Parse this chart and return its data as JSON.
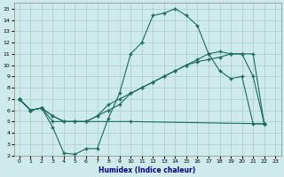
{
  "bg_color": "#ceeaea",
  "grid_color": "#aacccc",
  "line_color": "#1a6b5a",
  "xlabel": "Humidex (Indice chaleur)",
  "xlim": [
    -0.5,
    23.5
  ],
  "ylim": [
    2,
    15.5
  ],
  "xticks": [
    0,
    1,
    2,
    3,
    4,
    5,
    6,
    7,
    8,
    9,
    10,
    11,
    12,
    13,
    14,
    15,
    16,
    17,
    18,
    19,
    20,
    21,
    22,
    23
  ],
  "yticks": [
    2,
    3,
    4,
    5,
    6,
    7,
    8,
    9,
    10,
    11,
    12,
    13,
    14,
    15
  ],
  "curve1_x": [
    0,
    1,
    2,
    3,
    4,
    5,
    6,
    7,
    8,
    9,
    10,
    11,
    12,
    13,
    14,
    15,
    16,
    17,
    18,
    19,
    20,
    21,
    22
  ],
  "curve1_y": [
    7,
    6,
    6.2,
    4.5,
    2.2,
    2.1,
    2.6,
    2.6,
    5.3,
    7.5,
    11,
    12,
    14.4,
    14.6,
    15,
    14.4,
    13.5,
    11,
    9.5,
    8.8,
    9,
    4.8,
    4.8
  ],
  "curve2_x": [
    0,
    1,
    2,
    3,
    10,
    22
  ],
  "curve2_y": [
    7,
    6,
    6.2,
    5.0,
    5.0,
    4.8
  ],
  "curve3_x": [
    0,
    1,
    2,
    3,
    4,
    5,
    6,
    7,
    8,
    9,
    10,
    11,
    12,
    13,
    14,
    15,
    16,
    17,
    18,
    19,
    20,
    21,
    22
  ],
  "curve3_y": [
    7,
    6,
    6.2,
    5.5,
    5.0,
    5.0,
    5.0,
    5.5,
    6.0,
    6.5,
    7.5,
    8.0,
    8.5,
    9.0,
    9.5,
    10.0,
    10.3,
    10.5,
    10.7,
    11.0,
    11.0,
    9.0,
    4.8
  ],
  "curve4_x": [
    0,
    1,
    2,
    3,
    4,
    5,
    6,
    7,
    8,
    9,
    10,
    11,
    12,
    13,
    14,
    15,
    16,
    17,
    18,
    19,
    20,
    21,
    22
  ],
  "curve4_y": [
    7,
    6,
    6.2,
    5.5,
    5.0,
    5.0,
    5.0,
    5.5,
    6.5,
    7.0,
    7.5,
    8.0,
    8.5,
    9.0,
    9.5,
    10.0,
    10.5,
    11.0,
    11.2,
    11.0,
    11.0,
    11.0,
    4.8
  ]
}
